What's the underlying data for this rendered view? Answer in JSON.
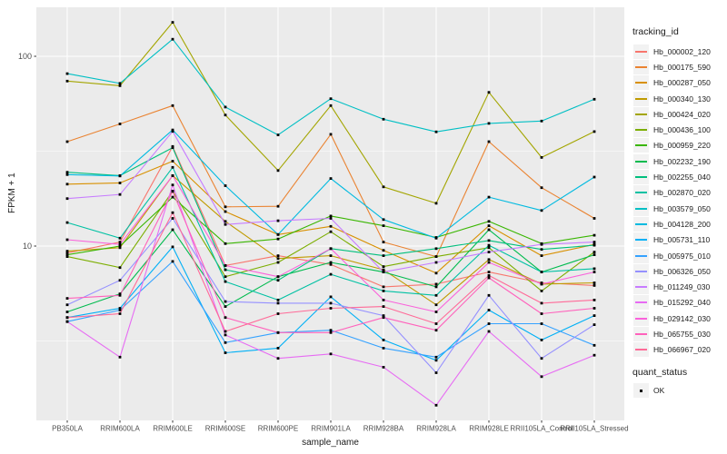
{
  "chart_data": {
    "type": "line",
    "title": "",
    "xlabel": "sample_name",
    "ylabel": "FPKM + 1",
    "y_scale": "log10",
    "y_ticks": [
      {
        "value": 100,
        "label": "100"
      },
      {
        "value": 10,
        "label": "10"
      }
    ],
    "y_minor_gridlines": [
      31.62,
      3.162
    ],
    "ylim": [
      1.2,
      185
    ],
    "grid": "on",
    "legend_position": "right",
    "legend_title": "tracking_id",
    "legend2_title": "quant_status",
    "legend2_items": [
      {
        "label": "OK",
        "marker": "black-square"
      }
    ],
    "categories": [
      "PB350LA",
      "RRIM600LA",
      "RRIM600LE",
      "RRIM600SE",
      "RRIM600PE",
      "RRIM901LA",
      "RRIM928BA",
      "RRIM928LA",
      "RRIM928LE",
      "RRII105LA_Control",
      "RRII105LA_Stressed"
    ],
    "series": [
      {
        "name": "Hb_000002_120",
        "color": "#F8766D",
        "values": [
          9.2,
          10.5,
          33.5,
          7.9,
          8.9,
          8.0,
          6.1,
          6.3,
          7.3,
          6.4,
          6.2
        ]
      },
      {
        "name": "Hb_000175_590",
        "color": "#EA8331",
        "values": [
          35.5,
          44.0,
          55.0,
          16.1,
          16.2,
          38.8,
          10.5,
          8.8,
          35.5,
          20.3,
          14.0
        ]
      },
      {
        "name": "Hb_000287_050",
        "color": "#D89000",
        "values": [
          21.2,
          21.5,
          28.0,
          15.2,
          11.5,
          12.7,
          9.5,
          7.2,
          12.8,
          8.9,
          10.2
        ]
      },
      {
        "name": "Hb_000340_130",
        "color": "#C09B00",
        "values": [
          9.4,
          9.8,
          23.5,
          13.5,
          8.6,
          8.9,
          7.5,
          4.9,
          8.5,
          6.3,
          6.4
        ]
      },
      {
        "name": "Hb_000424_020",
        "color": "#A3A500",
        "values": [
          74.0,
          70.0,
          151.0,
          49.0,
          25.0,
          55.0,
          20.5,
          16.8,
          64.6,
          29.3,
          40.1
        ]
      },
      {
        "name": "Hb_000436_100",
        "color": "#7CAE00",
        "values": [
          8.8,
          7.7,
          19.5,
          6.9,
          8.2,
          11.9,
          7.8,
          8.8,
          9.8,
          5.8,
          9.3
        ]
      },
      {
        "name": "Hb_000959_220",
        "color": "#39B600",
        "values": [
          9.0,
          10.0,
          18.1,
          10.3,
          10.9,
          14.4,
          12.8,
          11.1,
          13.5,
          10.3,
          11.4
        ]
      },
      {
        "name": "Hb_002232_190",
        "color": "#00BB4E",
        "values": [
          4.5,
          5.6,
          12.2,
          4.8,
          6.9,
          8.2,
          7.3,
          6.1,
          12.2,
          7.3,
          9.0
        ]
      },
      {
        "name": "Hb_002255_040",
        "color": "#00BF7D",
        "values": [
          24.5,
          23.5,
          33.0,
          7.5,
          6.6,
          9.7,
          8.9,
          9.7,
          10.7,
          9.6,
          10.1
        ]
      },
      {
        "name": "Hb_002870_020",
        "color": "#00C1A3",
        "values": [
          13.3,
          11.0,
          26.0,
          6.5,
          5.2,
          7.1,
          5.8,
          5.5,
          10.1,
          7.3,
          7.6
        ]
      },
      {
        "name": "Hb_003579_050",
        "color": "#00BFC4",
        "values": [
          81.0,
          72.0,
          123.0,
          54.0,
          38.5,
          59.8,
          46.6,
          40.0,
          44.3,
          45.6,
          59.4
        ]
      },
      {
        "name": "Hb_004128_200",
        "color": "#00BAE0",
        "values": [
          23.8,
          23.4,
          40.9,
          20.8,
          11.5,
          22.7,
          13.8,
          11.0,
          18.1,
          15.4,
          23.1
        ]
      },
      {
        "name": "Hb_005731_110",
        "color": "#00B0F6",
        "values": [
          4.2,
          4.7,
          9.9,
          2.74,
          2.9,
          5.4,
          3.2,
          2.5,
          4.6,
          3.2,
          4.3
        ]
      },
      {
        "name": "Hb_005975_010",
        "color": "#35A2FF",
        "values": [
          4.0,
          4.6,
          8.3,
          3.1,
          3.5,
          3.6,
          2.9,
          2.6,
          3.9,
          3.9,
          3.0
        ]
      },
      {
        "name": "Hb_006326_050",
        "color": "#9590FF",
        "values": [
          4.9,
          6.6,
          14.0,
          5.1,
          5.0,
          5.0,
          4.3,
          2.15,
          5.5,
          2.56,
          3.85
        ]
      },
      {
        "name": "Hb_011249_030",
        "color": "#C77CFF",
        "values": [
          17.8,
          18.7,
          40.2,
          13.0,
          13.6,
          14.0,
          7.3,
          8.2,
          9.3,
          10.2,
          10.5
        ]
      },
      {
        "name": "Hb_015292_040",
        "color": "#E76BF3",
        "values": [
          4.0,
          2.6,
          21.0,
          3.4,
          2.56,
          2.7,
          2.3,
          1.45,
          3.55,
          2.05,
          2.66
        ]
      },
      {
        "name": "Hb_029142_030",
        "color": "#FA62DB",
        "values": [
          10.8,
          10.2,
          23.5,
          7.9,
          6.9,
          9.7,
          5.2,
          4.5,
          8.2,
          6.3,
          7.3
        ]
      },
      {
        "name": "Hb_065755_030",
        "color": "#FF62BC",
        "values": [
          5.3,
          5.5,
          19.4,
          4.2,
          3.5,
          3.5,
          4.2,
          3.6,
          6.8,
          4.4,
          4.7
        ]
      },
      {
        "name": "Hb_066967_020",
        "color": "#FF6A98",
        "values": [
          4.2,
          4.4,
          15.0,
          3.55,
          4.4,
          4.7,
          4.8,
          3.9,
          7.0,
          5.0,
          5.2
        ]
      }
    ],
    "colors": {
      "panel_background": "#EBEBEB",
      "gridline": "#FFFFFF",
      "tick_text": "#4D4D4D",
      "tick_mark": "#333333",
      "point": "#000000",
      "legend_key_background": "#F2F2F2"
    }
  }
}
